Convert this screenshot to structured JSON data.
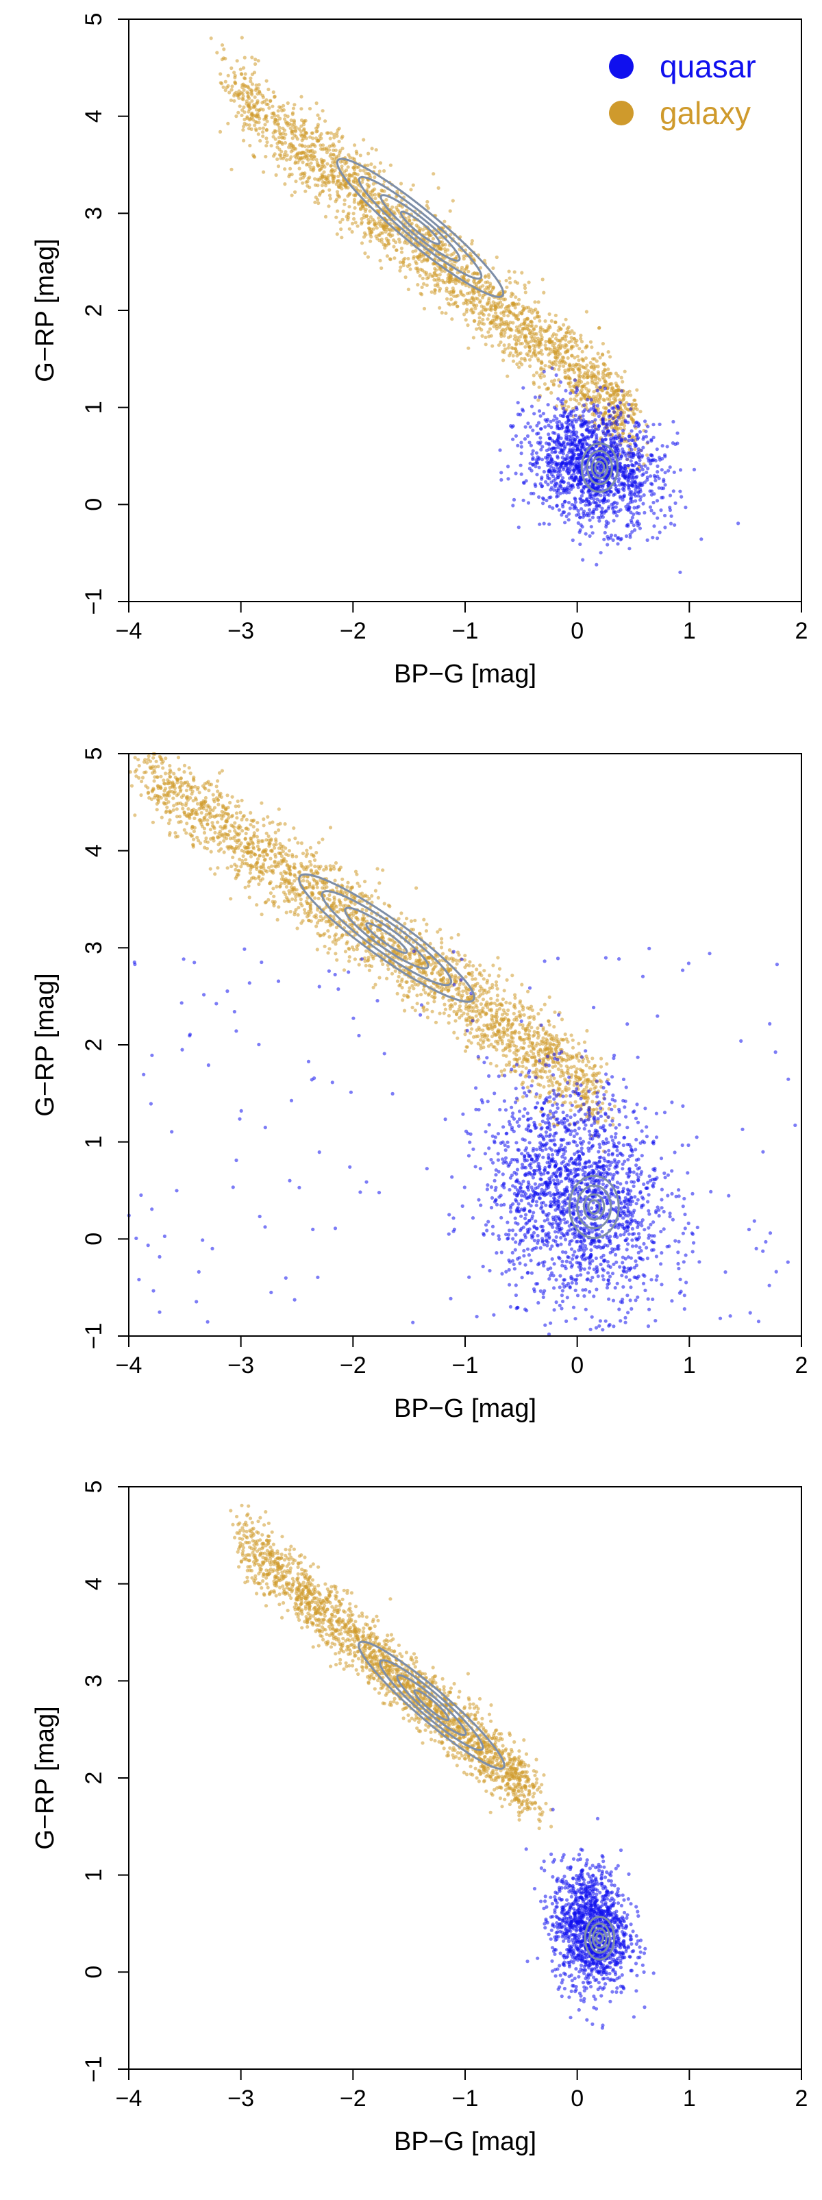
{
  "colors": {
    "quasar": "#1010ee",
    "galaxy": "#cf9a2c",
    "contour": "#7d8ea8"
  },
  "legend": {
    "quasar_label": "quasar",
    "galaxy_label": "galaxy"
  },
  "chart_data": [
    {
      "type": "scatter",
      "xlabel": "BP−G [mag]",
      "ylabel": "G−RP [mag]",
      "xlim": [
        -4,
        2
      ],
      "ylim": [
        -1,
        5
      ],
      "xticks": [
        "−4",
        "−3",
        "−2",
        "−1",
        "0",
        "1",
        "2"
      ],
      "yticks": [
        "−1",
        "0",
        "1",
        "2",
        "3",
        "4",
        "5"
      ],
      "grid": false,
      "legend": "top-right",
      "series": [
        {
          "name": "quasar",
          "color": "#1010ee",
          "center": [
            0.15,
            0.4
          ],
          "spread": [
            0.3,
            0.3
          ],
          "n": 1500,
          "contours": {
            "center": [
              0.2,
              0.38
            ],
            "radii": [
              [
                0.16,
                0.25
              ],
              [
                0.11,
                0.17
              ],
              [
                0.07,
                0.11
              ],
              [
                0.04,
                0.06
              ]
            ]
          }
        },
        {
          "name": "galaxy",
          "color": "#cf9a2c",
          "trend": {
            "x_from": -3.1,
            "x_to": 0.5,
            "slope": -0.95,
            "intercept": 1.35
          },
          "spread": 0.22,
          "n": 2400,
          "contours": {
            "center": [
              -1.4,
              2.85
            ],
            "radii": [
              [
                0.95,
                0.18
              ],
              [
                0.7,
                0.13
              ],
              [
                0.45,
                0.09
              ],
              [
                0.22,
                0.05
              ]
            ]
          }
        }
      ]
    },
    {
      "type": "scatter",
      "xlabel": "BP−G [mag]",
      "ylabel": "G−RP [mag]",
      "xlim": [
        -4,
        2
      ],
      "ylim": [
        -1,
        5
      ],
      "xticks": [
        "−4",
        "−3",
        "−2",
        "−1",
        "0",
        "1",
        "2"
      ],
      "yticks": [
        "−1",
        "0",
        "1",
        "2",
        "3",
        "4",
        "5"
      ],
      "grid": false,
      "series": [
        {
          "name": "quasar",
          "color": "#1010ee",
          "center": [
            0.0,
            0.45
          ],
          "spread": [
            0.4,
            0.55
          ],
          "n": 1800,
          "outliers": 160,
          "contours": {
            "center": [
              0.15,
              0.33
            ],
            "radii": [
              [
                0.22,
                0.32
              ],
              [
                0.15,
                0.22
              ],
              [
                0.09,
                0.13
              ],
              [
                0.05,
                0.07
              ]
            ]
          }
        },
        {
          "name": "galaxy",
          "color": "#cf9a2c",
          "trend": {
            "x_from": -3.9,
            "x_to": 0.2,
            "slope": -0.82,
            "intercept": 1.65
          },
          "spread": 0.22,
          "n": 2400,
          "contours": {
            "center": [
              -1.7,
              3.1
            ],
            "radii": [
              [
                0.95,
                0.2
              ],
              [
                0.7,
                0.15
              ],
              [
                0.45,
                0.1
              ],
              [
                0.22,
                0.05
              ]
            ]
          }
        }
      ]
    },
    {
      "type": "scatter",
      "xlabel": "BP−G [mag]",
      "ylabel": "G−RP [mag]",
      "xlim": [
        -4,
        2
      ],
      "ylim": [
        -1,
        5
      ],
      "xticks": [
        "−4",
        "−3",
        "−2",
        "−1",
        "0",
        "1",
        "2"
      ],
      "yticks": [
        "−1",
        "0",
        "1",
        "2",
        "3",
        "4",
        "5"
      ],
      "grid": false,
      "series": [
        {
          "name": "quasar",
          "color": "#1010ee",
          "center": [
            0.12,
            0.45
          ],
          "spread": [
            0.17,
            0.32
          ],
          "n": 1300,
          "contours": {
            "center": [
              0.2,
              0.35
            ],
            "radii": [
              [
                0.13,
                0.22
              ],
              [
                0.09,
                0.15
              ],
              [
                0.06,
                0.1
              ],
              [
                0.03,
                0.05
              ]
            ]
          }
        },
        {
          "name": "galaxy",
          "color": "#cf9a2c",
          "trend": {
            "x_from": -3.0,
            "x_to": -0.4,
            "slope": -1.0,
            "intercept": 1.45
          },
          "spread": 0.17,
          "n": 2000,
          "contours": {
            "center": [
              -1.3,
              2.75
            ],
            "radii": [
              [
                0.85,
                0.16
              ],
              [
                0.6,
                0.12
              ],
              [
                0.4,
                0.08
              ],
              [
                0.2,
                0.045
              ]
            ]
          }
        }
      ]
    }
  ]
}
